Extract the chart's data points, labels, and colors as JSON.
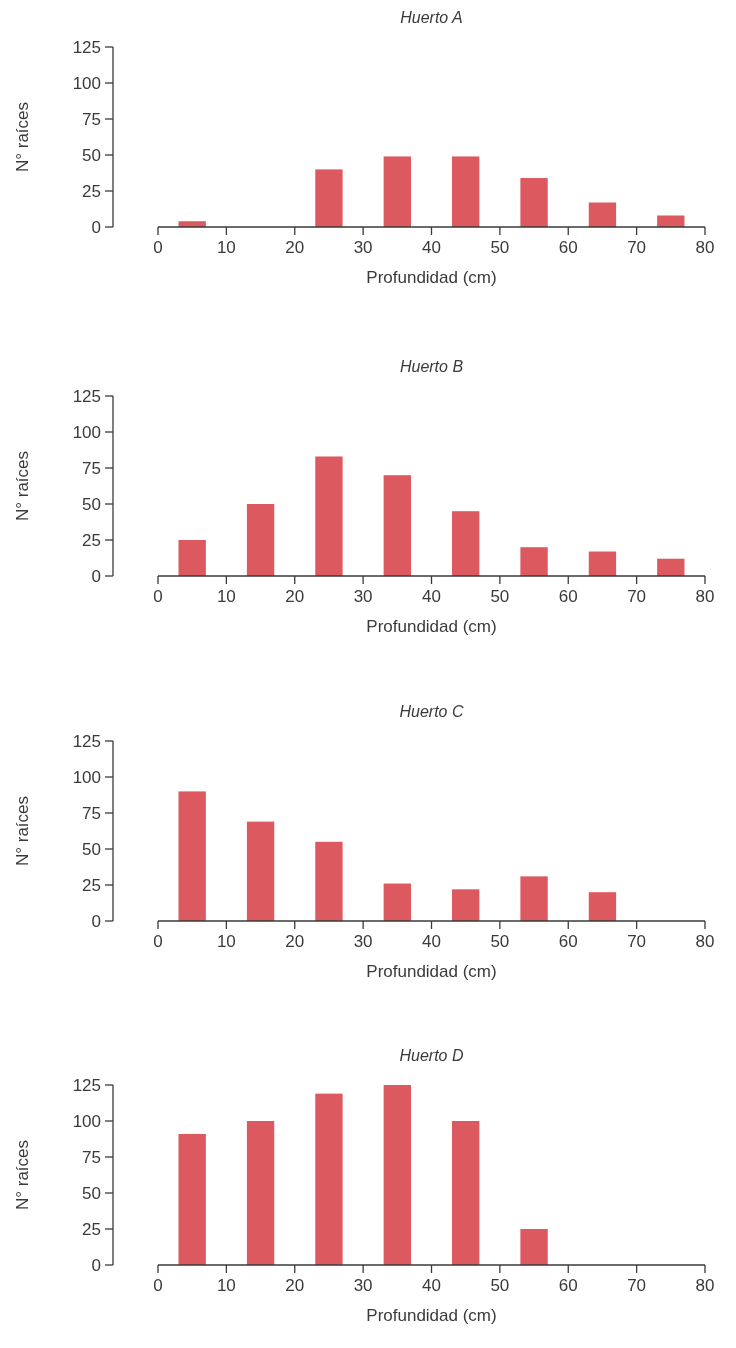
{
  "chart_data": [
    {
      "type": "bar",
      "title": "Huerto A",
      "xlabel": "Profundidad (cm)",
      "ylabel": "N° raíces",
      "x": [
        5,
        25,
        35,
        45,
        55,
        65,
        75
      ],
      "values": [
        4,
        40,
        49,
        49,
        34,
        17,
        8
      ],
      "color": "#dc5a5f",
      "xlim": [
        0,
        80
      ],
      "xticks": [
        0,
        10,
        20,
        30,
        40,
        50,
        60,
        70,
        80
      ],
      "ylim": [
        0,
        125
      ],
      "yticks": [
        0,
        25,
        50,
        75,
        100,
        125
      ]
    },
    {
      "type": "bar",
      "title": "Huerto B",
      "xlabel": "Profundidad (cm)",
      "ylabel": "N° raíces",
      "x": [
        5,
        15,
        25,
        35,
        45,
        55,
        65,
        75
      ],
      "values": [
        25,
        50,
        83,
        70,
        45,
        20,
        17,
        12
      ],
      "color": "#dc5a5f",
      "xlim": [
        0,
        80
      ],
      "xticks": [
        0,
        10,
        20,
        30,
        40,
        50,
        60,
        70,
        80
      ],
      "ylim": [
        0,
        125
      ],
      "yticks": [
        0,
        25,
        50,
        75,
        100,
        125
      ]
    },
    {
      "type": "bar",
      "title": "Huerto C",
      "xlabel": "Profundidad (cm)",
      "ylabel": "N° raíces",
      "x": [
        5,
        15,
        25,
        35,
        45,
        55,
        65
      ],
      "values": [
        90,
        69,
        55,
        26,
        22,
        31,
        20
      ],
      "color": "#dc5a5f",
      "xlim": [
        0,
        80
      ],
      "xticks": [
        0,
        10,
        20,
        30,
        40,
        50,
        60,
        70,
        80
      ],
      "ylim": [
        0,
        125
      ],
      "yticks": [
        0,
        25,
        50,
        75,
        100,
        125
      ]
    },
    {
      "type": "bar",
      "title": "Huerto D",
      "xlabel": "Profundidad (cm)",
      "ylabel": "N° raíces",
      "x": [
        5,
        15,
        25,
        35,
        45,
        55
      ],
      "values": [
        91,
        100,
        119,
        125,
        100,
        25
      ],
      "color": "#dc5a5f",
      "xlim": [
        0,
        80
      ],
      "xticks": [
        0,
        10,
        20,
        30,
        40,
        50,
        60,
        70,
        80
      ],
      "ylim": [
        0,
        125
      ],
      "yticks": [
        0,
        25,
        50,
        75,
        100,
        125
      ]
    }
  ]
}
